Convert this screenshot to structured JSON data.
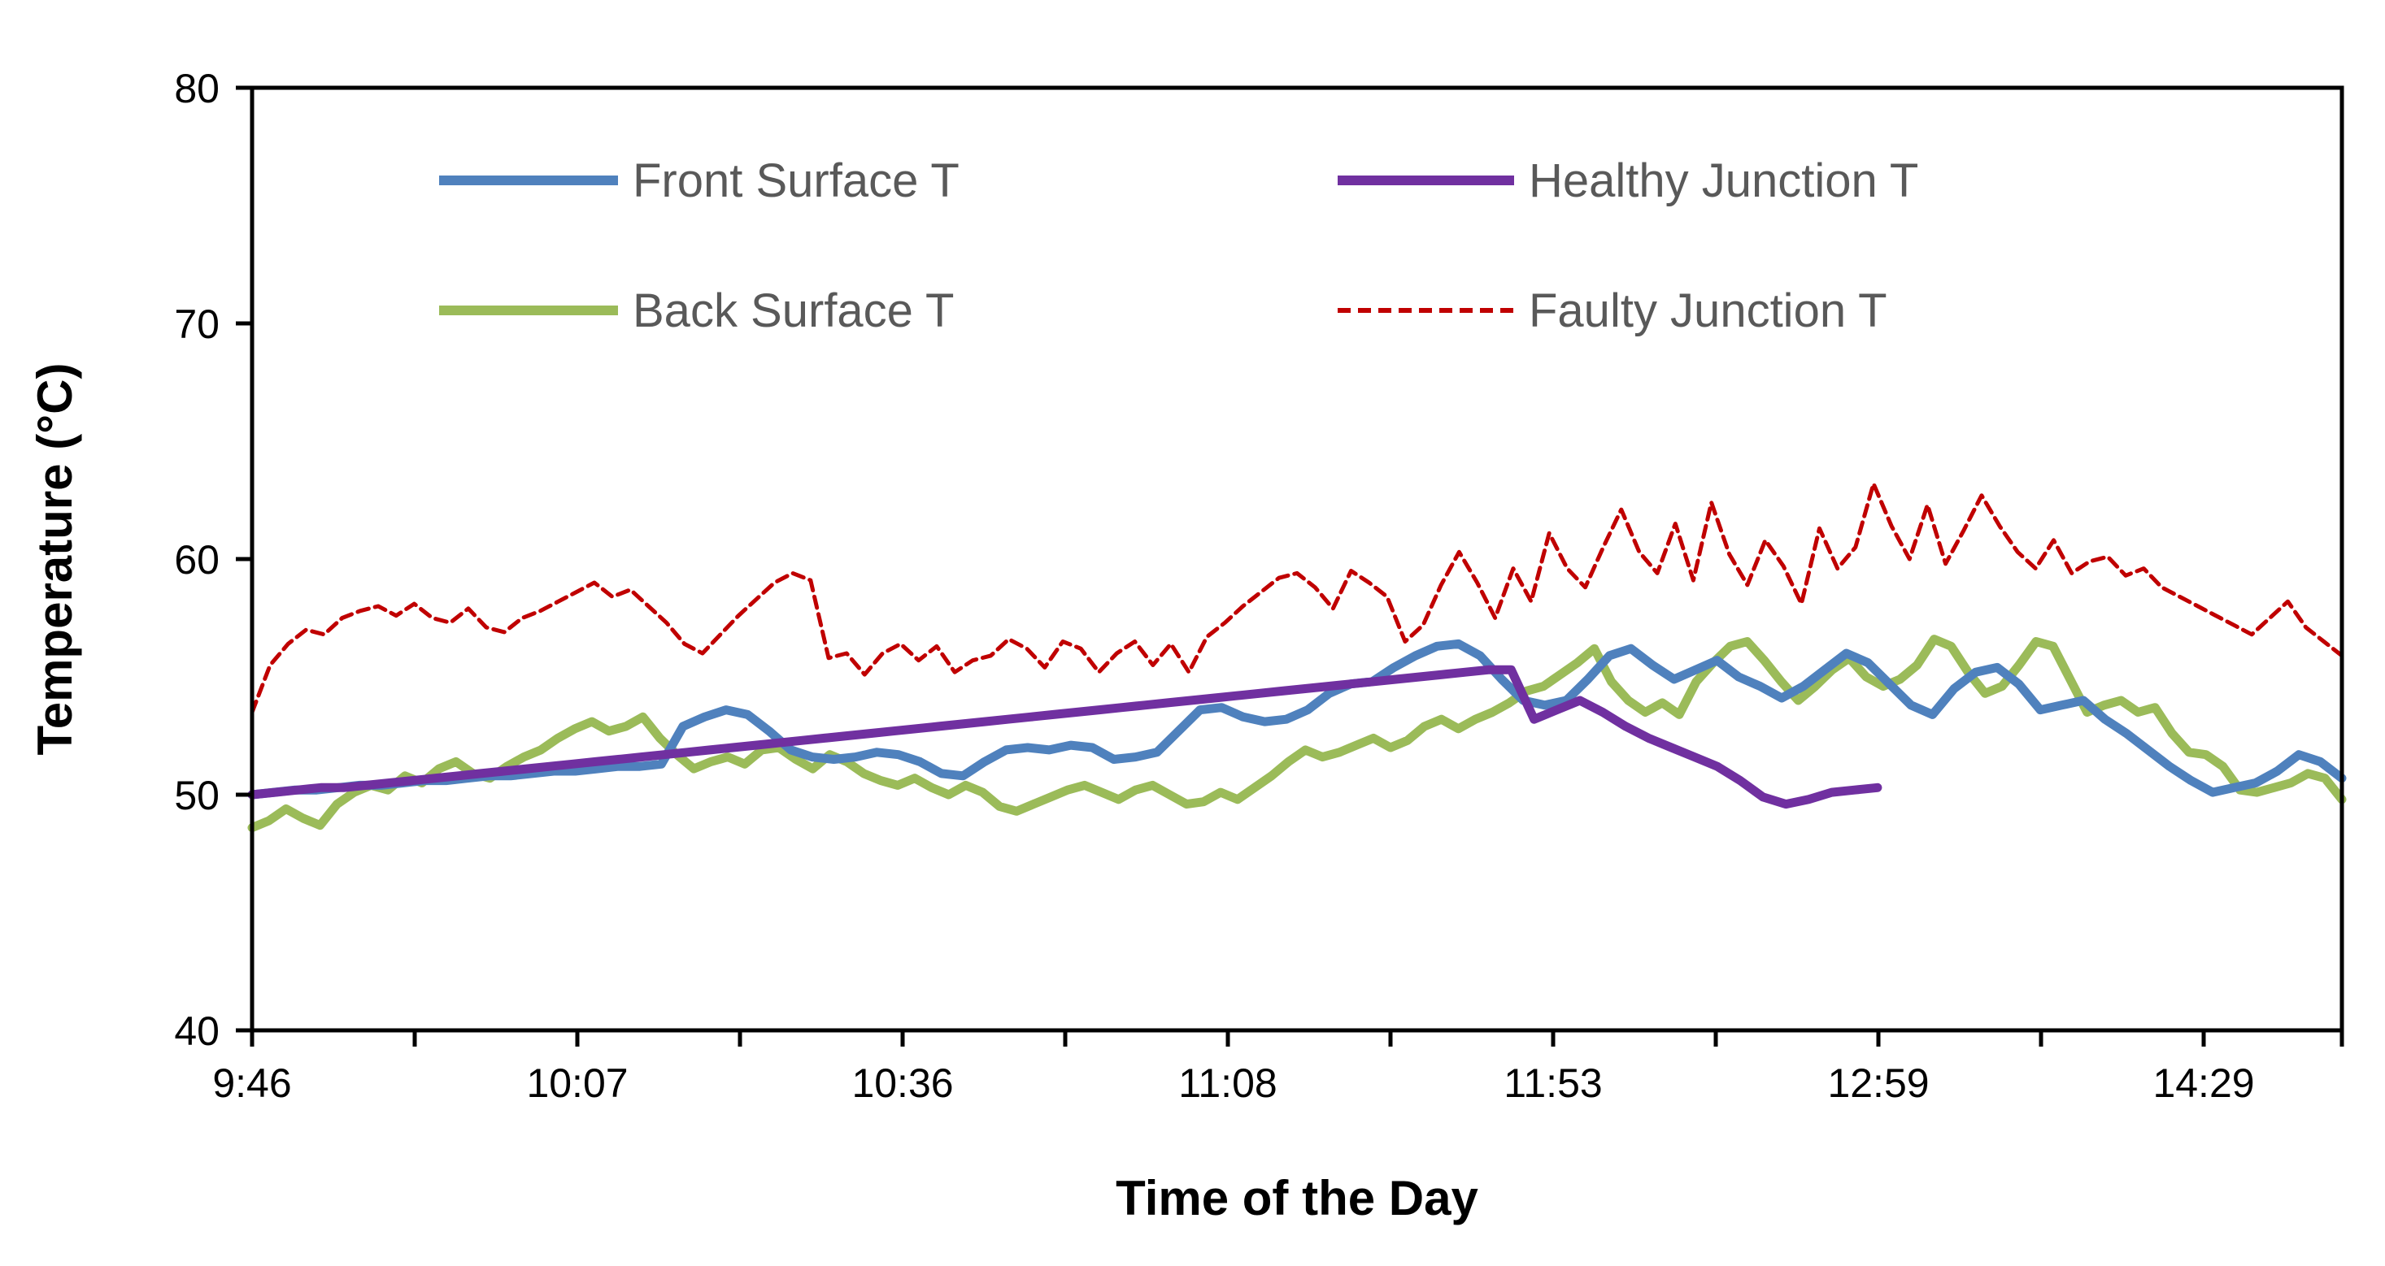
{
  "chart_data": {
    "type": "line",
    "title": "",
    "xlabel": "Time of the Day",
    "ylabel": "Temperature (°C)",
    "ylim": [
      40,
      80
    ],
    "yticks": [
      40,
      50,
      60,
      70,
      80
    ],
    "ytick_labels": [
      "40",
      "50",
      "60",
      "70",
      "80"
    ],
    "x_index_range": [
      0,
      90
    ],
    "xtick_labels": [
      "9:46",
      "10:07",
      "10:36",
      "11:08",
      "11:53",
      "12:59",
      "14:29"
    ],
    "grid": false,
    "legend_position": "top (inside plot, two columns)",
    "series": [
      {
        "name": "Front Surface T",
        "color": "#4F81BD",
        "style": "solid",
        "values": [
          50.0,
          50.1,
          50.2,
          50.2,
          50.3,
          50.4,
          50.4,
          50.5,
          50.6,
          50.6,
          50.7,
          50.8,
          50.8,
          50.9,
          51.0,
          51.0,
          51.1,
          51.2,
          51.2,
          51.3,
          52.9,
          53.3,
          53.6,
          53.4,
          52.7,
          51.9,
          51.6,
          51.5,
          51.6,
          51.8,
          51.7,
          51.4,
          50.9,
          50.8,
          51.4,
          51.9,
          52.0,
          51.9,
          52.1,
          52.0,
          51.5,
          51.6,
          51.8,
          52.7,
          53.6,
          53.7,
          53.3,
          53.1,
          53.2,
          53.6,
          54.3,
          54.7,
          54.8,
          55.4,
          55.9,
          56.3,
          56.4,
          55.9,
          54.9,
          54.0,
          53.8,
          54.0,
          54.9,
          55.9,
          56.2,
          55.5,
          54.9,
          55.3,
          55.7,
          55.0,
          54.6,
          54.1,
          54.6,
          55.3,
          56.0,
          55.6,
          54.7,
          53.8,
          53.4,
          54.5,
          55.2,
          55.4,
          54.7,
          53.6,
          53.8,
          54.0,
          53.2,
          52.6,
          51.9,
          51.2,
          50.6,
          50.1,
          50.3,
          50.5,
          51.0,
          51.7,
          51.4,
          50.7
        ]
      },
      {
        "name": "Healthy Junction T",
        "color": "#7030A0",
        "style": "solid",
        "values": [
          50.0,
          50.1,
          50.2,
          50.3,
          50.3,
          50.4,
          50.5,
          50.6,
          50.7,
          50.8,
          50.9,
          51.0,
          51.1,
          51.2,
          51.3,
          51.4,
          51.5,
          51.6,
          51.7,
          51.8,
          51.9,
          52.0,
          52.1,
          52.2,
          52.3,
          52.4,
          52.5,
          52.6,
          52.7,
          52.8,
          52.9,
          53.0,
          53.1,
          53.2,
          53.3,
          53.4,
          53.5,
          53.6,
          53.7,
          53.8,
          53.9,
          54.0,
          54.1,
          54.2,
          54.3,
          54.4,
          54.5,
          54.6,
          54.7,
          54.8,
          54.9,
          55.0,
          55.1,
          55.2,
          55.3,
          55.3,
          53.2,
          53.6,
          54.0,
          53.5,
          52.9,
          52.4,
          52.0,
          51.6,
          51.2,
          50.6,
          49.9,
          49.6,
          49.8,
          50.1,
          50.2,
          50.3
        ]
      },
      {
        "name": "Back Surface T",
        "color": "#9BBB59",
        "style": "solid",
        "values": [
          48.6,
          48.9,
          49.4,
          49.0,
          48.7,
          49.6,
          50.1,
          50.4,
          50.2,
          50.8,
          50.5,
          51.1,
          51.4,
          50.9,
          50.7,
          51.2,
          51.6,
          51.9,
          52.4,
          52.8,
          53.1,
          52.7,
          52.9,
          53.3,
          52.4,
          51.7,
          51.1,
          51.4,
          51.6,
          51.3,
          51.9,
          52.0,
          51.5,
          51.1,
          51.7,
          51.4,
          50.9,
          50.6,
          50.4,
          50.7,
          50.3,
          50.0,
          50.4,
          50.1,
          49.5,
          49.3,
          49.6,
          49.9,
          50.2,
          50.4,
          50.1,
          49.8,
          50.2,
          50.4,
          50.0,
          49.6,
          49.7,
          50.1,
          49.8,
          50.3,
          50.8,
          51.4,
          51.9,
          51.6,
          51.8,
          52.1,
          52.4,
          52.0,
          52.3,
          52.9,
          53.2,
          52.8,
          53.2,
          53.5,
          53.9,
          54.4,
          54.6,
          55.1,
          55.6,
          56.2,
          54.8,
          54.0,
          53.5,
          53.9,
          53.4,
          54.8,
          55.6,
          56.3,
          56.5,
          55.7,
          54.8,
          54.0,
          54.6,
          55.3,
          55.8,
          55.0,
          54.6,
          54.9,
          55.5,
          56.6,
          56.3,
          55.2,
          54.3,
          54.6,
          55.5,
          56.5,
          56.3,
          54.9,
          53.5,
          53.8,
          54.0,
          53.5,
          53.7,
          52.6,
          51.8,
          51.7,
          51.2,
          50.2,
          50.1,
          50.3,
          50.5,
          50.9,
          50.7,
          49.8
        ]
      },
      {
        "name": "Faulty Junction T",
        "color": "#C00000",
        "style": "dashed",
        "values": [
          53.5,
          55.5,
          56.4,
          57.0,
          56.8,
          57.5,
          57.8,
          58.0,
          57.6,
          58.1,
          57.5,
          57.3,
          57.9,
          57.1,
          56.9,
          57.5,
          57.8,
          58.2,
          58.6,
          59.0,
          58.4,
          58.7,
          58.0,
          57.3,
          56.4,
          56.0,
          56.8,
          57.6,
          58.3,
          59.0,
          59.4,
          59.1,
          55.8,
          56.0,
          55.1,
          56.0,
          56.4,
          55.7,
          56.3,
          55.2,
          55.7,
          55.9,
          56.6,
          56.2,
          55.4,
          56.5,
          56.2,
          55.2,
          56.0,
          56.5,
          55.5,
          56.4,
          55.2,
          56.7,
          57.3,
          58.0,
          58.6,
          59.2,
          59.4,
          58.8,
          57.9,
          59.5,
          59.0,
          58.4,
          56.5,
          57.2,
          58.9,
          60.3,
          59.0,
          57.5,
          59.6,
          58.2,
          61.1,
          59.6,
          58.8,
          60.5,
          62.1,
          60.3,
          59.4,
          61.5,
          59.1,
          62.4,
          60.2,
          58.9,
          60.8,
          59.7,
          58.1,
          61.3,
          59.6,
          60.5,
          63.2,
          61.4,
          60.0,
          62.3,
          59.8,
          61.2,
          62.7,
          61.4,
          60.3,
          59.6,
          60.8,
          59.4,
          59.9,
          60.1,
          59.3,
          59.6,
          58.8,
          58.4,
          58.0,
          57.6,
          57.2,
          56.8,
          57.5,
          58.2,
          57.1,
          56.5,
          55.9
        ]
      }
    ]
  }
}
